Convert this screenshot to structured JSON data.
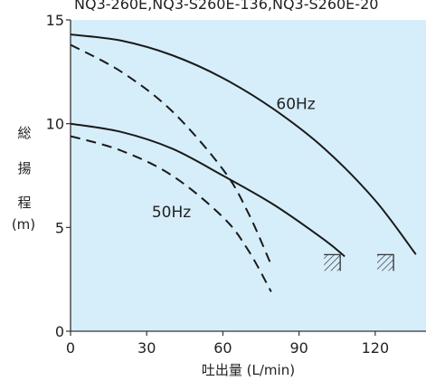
{
  "header_text": "NQ3-260E,NQ3-S260E-136,NQ3-S260E-20",
  "chart_data": {
    "type": "line",
    "xlabel": "吐出量 (L/min)",
    "ylabel": [
      "総",
      "揚",
      "程",
      "(m)"
    ],
    "xlim": [
      0,
      140
    ],
    "ylim": [
      0,
      15
    ],
    "x_ticks": [
      "0",
      "30",
      "60",
      "90",
      "120"
    ],
    "y_ticks": [
      "0",
      "5",
      "10",
      "15"
    ],
    "background_color": "#d6eefa",
    "line_color": "#1a1a1a",
    "series": [
      {
        "name": "60Hz",
        "style": "solid",
        "points": [
          [
            0,
            14.3
          ],
          [
            20,
            14.0
          ],
          [
            40,
            13.3
          ],
          [
            60,
            12.2
          ],
          [
            80,
            10.7
          ],
          [
            100,
            8.8
          ],
          [
            120,
            6.3
          ],
          [
            136,
            3.7
          ]
        ]
      },
      {
        "name": "",
        "style": "dashed",
        "points": [
          [
            0,
            13.8
          ],
          [
            20,
            12.5
          ],
          [
            40,
            10.6
          ],
          [
            60,
            7.8
          ],
          [
            70,
            5.7
          ],
          [
            79,
            3.2
          ]
        ]
      },
      {
        "name": "50Hz",
        "style": "solid",
        "points": [
          [
            0,
            10.0
          ],
          [
            20,
            9.6
          ],
          [
            40,
            8.8
          ],
          [
            60,
            7.5
          ],
          [
            80,
            6.1
          ],
          [
            100,
            4.4
          ],
          [
            108,
            3.6
          ]
        ]
      },
      {
        "name": "",
        "style": "dashed",
        "points": [
          [
            0,
            9.4
          ],
          [
            20,
            8.7
          ],
          [
            40,
            7.5
          ],
          [
            60,
            5.5
          ],
          [
            70,
            3.9
          ],
          [
            79,
            1.9
          ]
        ]
      }
    ],
    "hatched_markers": [
      [
        103,
        3.3
      ],
      [
        124,
        3.3
      ]
    ],
    "curve_labels": [
      {
        "text": "60Hz",
        "x": 81,
        "y": 10.7
      },
      {
        "text": "50Hz",
        "x": 32,
        "y": 5.5
      }
    ],
    "grid": false,
    "legend": "none"
  }
}
